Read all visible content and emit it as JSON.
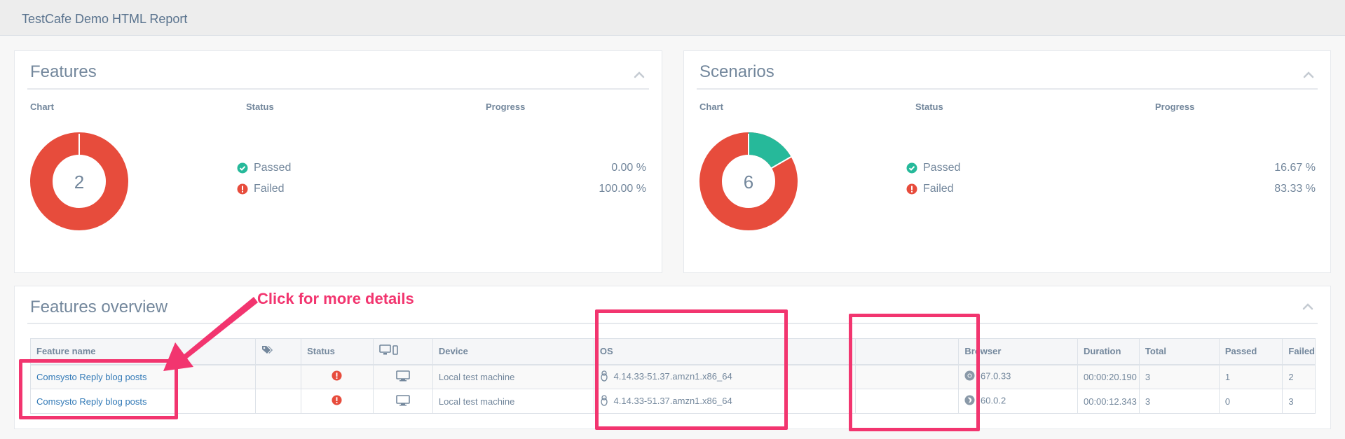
{
  "app": {
    "title": "TestCafe Demo HTML Report"
  },
  "features_panel": {
    "title": "Features",
    "headers": {
      "chart": "Chart",
      "status": "Status",
      "progress": "Progress"
    },
    "total": "2",
    "passed_label": "Passed",
    "failed_label": "Failed",
    "passed_pct": "0.00 %",
    "failed_pct": "100.00 %",
    "passed_fraction": 0,
    "failed_fraction": 1
  },
  "scenarios_panel": {
    "title": "Scenarios",
    "headers": {
      "chart": "Chart",
      "status": "Status",
      "progress": "Progress"
    },
    "total": "6",
    "passed_label": "Passed",
    "failed_label": "Failed",
    "passed_pct": "16.67 %",
    "failed_pct": "83.33 %",
    "passed_fraction": 0.1667,
    "failed_fraction": 0.8333
  },
  "overview": {
    "title": "Features overview",
    "columns": {
      "feature_name": "Feature name",
      "status": "Status",
      "device": "Device",
      "os": "OS",
      "browser": "Browser",
      "duration": "Duration",
      "total": "Total",
      "passed": "Passed",
      "failed": "Failed"
    },
    "rows": [
      {
        "feature_name": "Comsysto Reply blog posts",
        "status_icon": "exclamation-circle-icon",
        "device_icon": "desktop-icon",
        "device": "Local test machine",
        "os_icon": "linux-icon",
        "os": "4.14.33-51.37.amzn1.x86_64",
        "browser_icon": "chrome-icon",
        "browser": "67.0.33",
        "duration": "00:00:20.190",
        "total": "3",
        "passed": "1",
        "failed": "2"
      },
      {
        "feature_name": "Comsysto Reply blog posts",
        "status_icon": "exclamation-circle-icon",
        "device_icon": "desktop-icon",
        "device": "Local test machine",
        "os_icon": "linux-icon",
        "os": "4.14.33-51.37.amzn1.x86_64",
        "browser_icon": "firefox-icon",
        "browser": "60.0.2",
        "duration": "00:00:12.343",
        "total": "3",
        "passed": "0",
        "failed": "3"
      }
    ]
  },
  "annotation": {
    "callout": "Click for more details"
  },
  "colors": {
    "passed": "#26b99a",
    "failed": "#e74c3c",
    "highlight": "#f2356f",
    "link": "#337ab7"
  }
}
